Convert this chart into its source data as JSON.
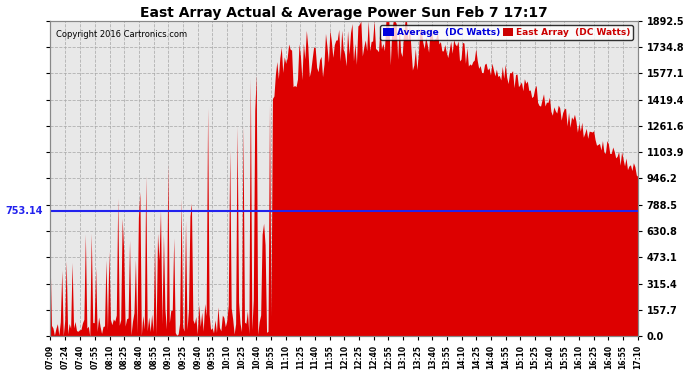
{
  "title": "East Array Actual & Average Power Sun Feb 7 17:17",
  "copyright": "Copyright 2016 Cartronics.com",
  "legend_labels": [
    "Average  (DC Watts)",
    "East Array  (DC Watts)"
  ],
  "legend_colors": [
    "#0000dd",
    "#cc0000"
  ],
  "average_value": 753.14,
  "ymin": 0.0,
  "ymax": 1892.5,
  "yticks": [
    0.0,
    157.7,
    315.4,
    473.1,
    630.8,
    788.5,
    946.2,
    1103.9,
    1261.6,
    1419.4,
    1577.1,
    1734.8,
    1892.5
  ],
  "plot_bg": "#e8e8e8",
  "fig_bg": "#ffffff",
  "fill_color": "#dd0000",
  "avg_line_color": "#2222ee",
  "grid_color": "#aaaaaa",
  "title_color": "#000000",
  "xticklabels": [
    "07:09",
    "07:24",
    "07:40",
    "07:55",
    "08:10",
    "08:25",
    "08:40",
    "08:55",
    "09:10",
    "09:25",
    "09:40",
    "09:55",
    "10:10",
    "10:25",
    "10:40",
    "10:55",
    "11:10",
    "11:25",
    "11:40",
    "11:55",
    "12:10",
    "12:25",
    "12:40",
    "12:55",
    "13:10",
    "13:25",
    "13:40",
    "13:55",
    "14:10",
    "14:25",
    "14:40",
    "14:55",
    "15:10",
    "15:25",
    "15:40",
    "15:55",
    "16:10",
    "16:25",
    "16:40",
    "16:55",
    "17:10"
  ]
}
